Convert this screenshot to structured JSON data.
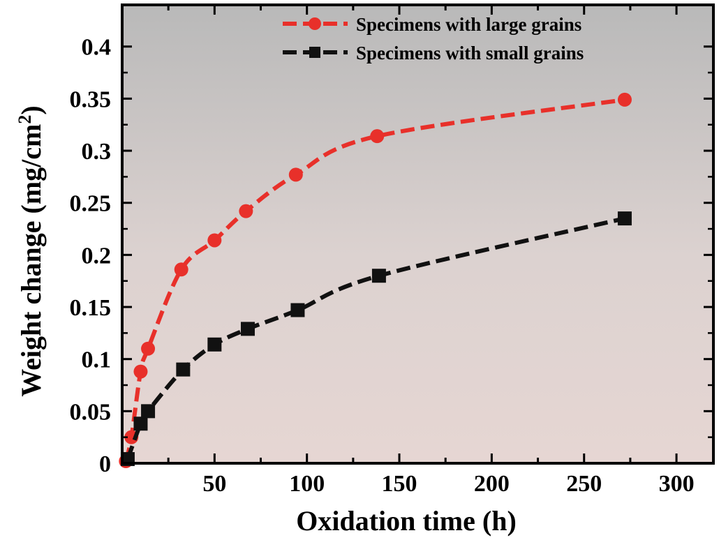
{
  "chart_data": {
    "type": "line",
    "xlabel": "Oxidation time (h)",
    "ylabel_main": "Weight change (mg/cm",
    "ylabel_sup": "2",
    "ylabel_close": ")",
    "xlim": [
      0,
      320
    ],
    "ylim": [
      0,
      0.44
    ],
    "xticks": [
      50,
      100,
      150,
      200,
      250,
      300
    ],
    "xtick_labels": [
      "50",
      "100",
      "150",
      "200",
      "250",
      "300"
    ],
    "yticks": [
      0,
      0.05,
      0.1,
      0.15,
      0.2,
      0.25,
      0.3,
      0.35,
      0.4
    ],
    "ytick_labels": [
      "0",
      "0.05",
      "0.1",
      "0.15",
      "0.2",
      "0.25",
      "0.3",
      "0.35",
      "0.4"
    ],
    "grid": false,
    "legend_position": "top-right",
    "series": [
      {
        "name": "Specimens with large grains",
        "color": "#e8302a",
        "marker": "circle",
        "line": "dashed",
        "x": [
          2,
          5,
          10,
          14,
          32,
          50,
          67,
          94,
          138,
          272
        ],
        "y": [
          0.002,
          0.025,
          0.088,
          0.11,
          0.186,
          0.214,
          0.242,
          0.277,
          0.314,
          0.349
        ]
      },
      {
        "name": "Specimens with small grains",
        "color": "#111111",
        "marker": "square",
        "line": "dashed",
        "x": [
          3,
          10,
          14,
          33,
          50,
          68,
          95,
          139,
          272
        ],
        "y": [
          0.004,
          0.038,
          0.05,
          0.09,
          0.114,
          0.129,
          0.147,
          0.18,
          0.235
        ]
      }
    ]
  }
}
